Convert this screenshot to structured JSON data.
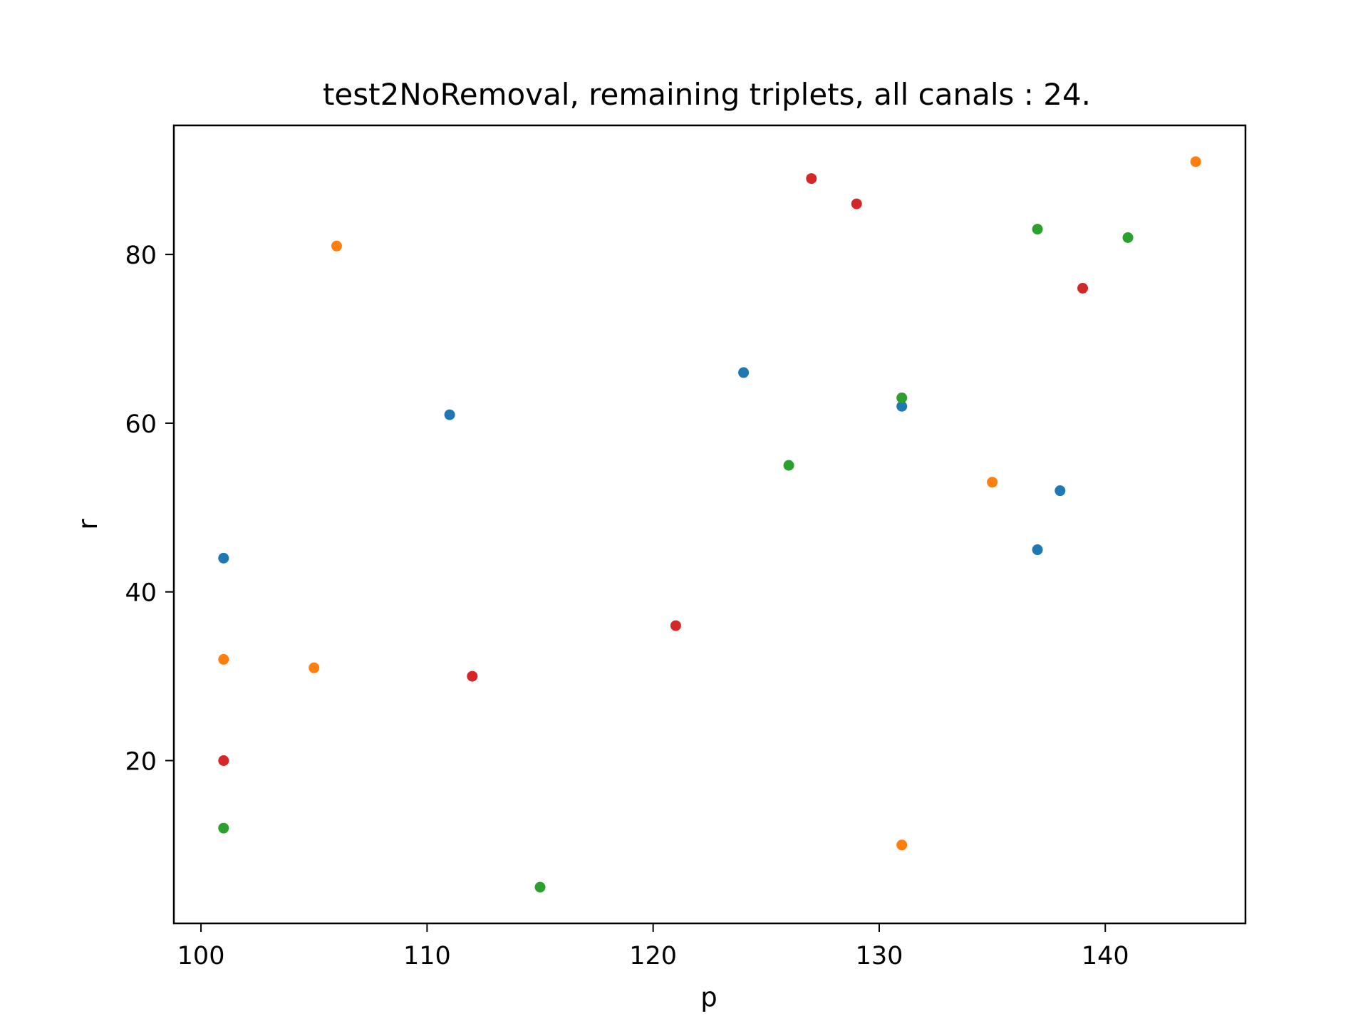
{
  "chart_data": {
    "type": "scatter",
    "title": "test2NoRemoval, remaining triplets, all canals : 24.",
    "xlabel": "p",
    "ylabel": "r",
    "xlim": [
      98.8,
      146.2
    ],
    "ylim": [
      0.7,
      95.3
    ],
    "xticks": [
      100,
      110,
      120,
      130,
      140
    ],
    "yticks": [
      20,
      40,
      60,
      80
    ],
    "grid": false,
    "series": [
      {
        "color": "#1f77b4",
        "points": [
          [
            101,
            44
          ],
          [
            111,
            61
          ],
          [
            124,
            66
          ],
          [
            131,
            62
          ],
          [
            137,
            45
          ],
          [
            138,
            52
          ]
        ]
      },
      {
        "color": "#ff7f0e",
        "points": [
          [
            101,
            32
          ],
          [
            105,
            31
          ],
          [
            106,
            81
          ],
          [
            131,
            10
          ],
          [
            135,
            53
          ],
          [
            144,
            91
          ]
        ]
      },
      {
        "color": "#2ca02c",
        "points": [
          [
            101,
            12
          ],
          [
            115,
            5
          ],
          [
            126,
            55
          ],
          [
            131,
            63
          ],
          [
            137,
            83
          ],
          [
            141,
            82
          ]
        ]
      },
      {
        "color": "#d62728",
        "points": [
          [
            101,
            20
          ],
          [
            112,
            30
          ],
          [
            121,
            36
          ],
          [
            127,
            89
          ],
          [
            129,
            86
          ],
          [
            139,
            76
          ]
        ]
      }
    ]
  }
}
